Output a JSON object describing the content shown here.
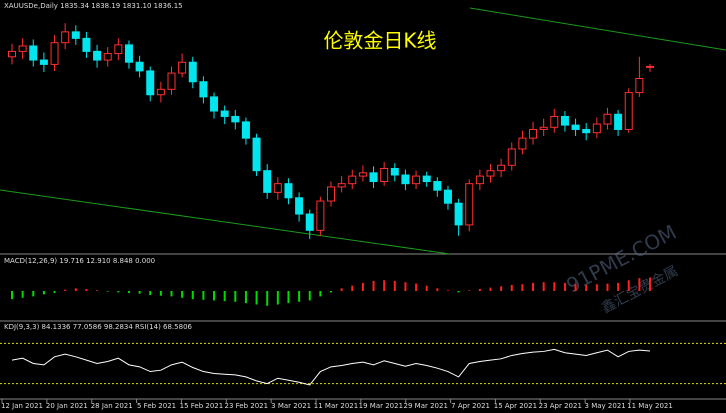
{
  "header": "XAUUSDe,Daily  1835.34 1838.19 1831.10 1836.15",
  "watermark": [
    "91PME.COM",
    "鑫汇宝贵金属"
  ],
  "x_labels": [
    "12 Jan 2021",
    "20 Jan 2021",
    "28 Jan 2021",
    "5 Feb 2021",
    "15 Feb 2021",
    "23 Feb 2021",
    "3 Mar 2021",
    "11 Mar 2021",
    "19 Mar 2021",
    "29 Mar 2021",
    "7 Apr 2021",
    "15 Apr 2021",
    "23 Apr 2021",
    "3 May 2021",
    "11 May 2021"
  ],
  "chart_data": [
    {
      "type": "candlestick",
      "title": "伦敦金日K线",
      "up_color": "#ff3030",
      "down_color": "#00e5ee",
      "ylim": [
        1665,
        1890
      ],
      "open": [
        1845,
        1850,
        1855,
        1842,
        1838,
        1858,
        1868,
        1862,
        1850,
        1842,
        1848,
        1856,
        1840,
        1832,
        1810,
        1815,
        1830,
        1840,
        1822,
        1808,
        1795,
        1790,
        1785,
        1770,
        1740,
        1720,
        1728,
        1715,
        1700,
        1685,
        1712,
        1725,
        1728,
        1735,
        1738,
        1730,
        1742,
        1736,
        1728,
        1735,
        1730,
        1722,
        1710,
        1690,
        1728,
        1735,
        1740,
        1745,
        1760,
        1770,
        1778,
        1780,
        1790,
        1782,
        1778,
        1775,
        1783,
        1792,
        1778,
        1812,
        1835.34
      ],
      "high": [
        1857,
        1862,
        1861,
        1849,
        1865,
        1876,
        1874,
        1868,
        1856,
        1854,
        1862,
        1860,
        1846,
        1836,
        1822,
        1836,
        1848,
        1845,
        1827,
        1812,
        1800,
        1796,
        1789,
        1774,
        1746,
        1734,
        1733,
        1720,
        1704,
        1716,
        1730,
        1735,
        1741,
        1745,
        1744,
        1748,
        1747,
        1741,
        1740,
        1739,
        1734,
        1726,
        1714,
        1732,
        1741,
        1746,
        1751,
        1766,
        1777,
        1785,
        1788,
        1797,
        1795,
        1788,
        1784,
        1789,
        1798,
        1796,
        1816,
        1845,
        1838.19
      ],
      "low": [
        1838,
        1843,
        1836,
        1831,
        1832,
        1852,
        1856,
        1844,
        1835,
        1836,
        1842,
        1834,
        1826,
        1804,
        1803,
        1810,
        1826,
        1816,
        1802,
        1788,
        1783,
        1778,
        1764,
        1735,
        1714,
        1713,
        1709,
        1693,
        1677,
        1680,
        1707,
        1720,
        1723,
        1730,
        1724,
        1726,
        1730,
        1722,
        1723,
        1725,
        1716,
        1704,
        1680,
        1684,
        1722,
        1729,
        1734,
        1740,
        1755,
        1764,
        1772,
        1775,
        1776,
        1772,
        1768,
        1770,
        1778,
        1772,
        1775,
        1808,
        1831.1
      ],
      "close": [
        1850,
        1855,
        1842,
        1838,
        1858,
        1868,
        1862,
        1850,
        1842,
        1848,
        1856,
        1840,
        1832,
        1810,
        1815,
        1830,
        1840,
        1822,
        1808,
        1795,
        1790,
        1785,
        1770,
        1740,
        1720,
        1728,
        1715,
        1700,
        1685,
        1712,
        1725,
        1728,
        1735,
        1738,
        1730,
        1742,
        1736,
        1728,
        1735,
        1730,
        1722,
        1710,
        1690,
        1728,
        1735,
        1740,
        1745,
        1760,
        1770,
        1778,
        1780,
        1790,
        1782,
        1778,
        1775,
        1783,
        1792,
        1778,
        1812,
        1825,
        1836.15
      ]
    },
    {
      "type": "bar",
      "title": "MACD(12,26,9) 19.716 12.910 8.848 0.000",
      "positive_color": "#ff2020",
      "negative_color": "#00dd00",
      "ylim": [
        -40,
        40
      ],
      "values": [
        -12,
        -10,
        -8,
        -5,
        -3,
        2,
        4,
        3,
        1,
        -1,
        -2,
        -3,
        -4,
        -6,
        -7,
        -8,
        -10,
        -12,
        -13,
        -14,
        -15,
        -16,
        -18,
        -20,
        -22,
        -20,
        -18,
        -16,
        -14,
        -8,
        -2,
        4,
        8,
        12,
        15,
        16,
        15,
        13,
        11,
        8,
        4,
        1,
        -2,
        1,
        3,
        5,
        7,
        9,
        10,
        12,
        13,
        13,
        12,
        10,
        9,
        10,
        11,
        12,
        16,
        19,
        20
      ]
    },
    {
      "type": "line",
      "title": "KDJ(9,3,3) 84.1336 77.0586 98.2834  RSI(14) 68.5806",
      "color": "#ffffff",
      "level_color": "#e0e000",
      "ylim": [
        0,
        100
      ],
      "levels": [
        80,
        20
      ],
      "values": [
        55,
        58,
        50,
        48,
        60,
        64,
        60,
        55,
        50,
        53,
        58,
        48,
        45,
        38,
        40,
        48,
        52,
        44,
        38,
        35,
        34,
        33,
        30,
        24,
        20,
        28,
        25,
        22,
        18,
        38,
        45,
        47,
        50,
        52,
        48,
        54,
        50,
        46,
        50,
        47,
        43,
        38,
        30,
        50,
        53,
        55,
        57,
        62,
        65,
        67,
        68,
        71,
        66,
        64,
        62,
        66,
        70,
        60,
        68,
        70,
        68.5806
      ]
    }
  ]
}
